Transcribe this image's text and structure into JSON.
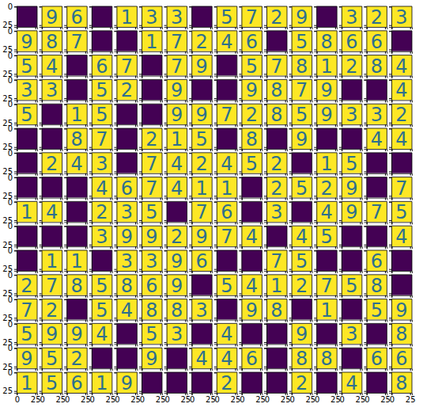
{
  "chart_data": {
    "type": "image_grid",
    "xlim": [
      -0.5,
      27.5
    ],
    "ylim": [
      27.5,
      -0.5
    ],
    "xticks": [
      0,
      25
    ],
    "yticks": [
      0,
      25
    ],
    "cells": [
      [
        null,
        9,
        6,
        null,
        1,
        3,
        3,
        null,
        5,
        7,
        2,
        9,
        null,
        3,
        2,
        3
      ],
      [
        9,
        8,
        7,
        null,
        null,
        1,
        7,
        2,
        4,
        6,
        null,
        5,
        8,
        6,
        6,
        null
      ],
      [
        5,
        4,
        null,
        6,
        7,
        null,
        7,
        9,
        null,
        5,
        7,
        8,
        1,
        2,
        8,
        4
      ],
      [
        3,
        3,
        null,
        5,
        2,
        null,
        9,
        null,
        null,
        9,
        8,
        7,
        9,
        null,
        null,
        4
      ],
      [
        5,
        null,
        1,
        5,
        null,
        null,
        9,
        9,
        7,
        2,
        8,
        5,
        9,
        3,
        3,
        2
      ],
      [
        null,
        null,
        8,
        7,
        null,
        2,
        1,
        5,
        null,
        8,
        null,
        9,
        null,
        null,
        4,
        4
      ],
      [
        null,
        2,
        4,
        3,
        null,
        7,
        4,
        2,
        4,
        5,
        2,
        null,
        1,
        5,
        null,
        null
      ],
      [
        null,
        null,
        null,
        4,
        6,
        7,
        4,
        1,
        1,
        null,
        2,
        5,
        2,
        9,
        null,
        7
      ],
      [
        1,
        4,
        null,
        2,
        3,
        5,
        null,
        7,
        6,
        null,
        3,
        null,
        4,
        9,
        7,
        5
      ],
      [
        null,
        null,
        null,
        3,
        9,
        9,
        2,
        9,
        7,
        4,
        null,
        4,
        5,
        null,
        null,
        4
      ],
      [
        null,
        1,
        1,
        null,
        3,
        3,
        9,
        6,
        null,
        null,
        7,
        5,
        null,
        null,
        6,
        null
      ],
      [
        2,
        7,
        8,
        5,
        8,
        6,
        9,
        null,
        5,
        4,
        1,
        2,
        7,
        5,
        8,
        null
      ],
      [
        7,
        2,
        null,
        5,
        4,
        8,
        8,
        3,
        null,
        9,
        8,
        null,
        1,
        null,
        5,
        9
      ],
      [
        5,
        9,
        9,
        4,
        null,
        5,
        3,
        null,
        4,
        null,
        null,
        9,
        null,
        3,
        null,
        8
      ],
      [
        9,
        5,
        2,
        null,
        null,
        9,
        null,
        4,
        4,
        6,
        null,
        8,
        8,
        null,
        6,
        6
      ],
      [
        1,
        5,
        6,
        1,
        9,
        null,
        null,
        null,
        2,
        null,
        null,
        2,
        null,
        4,
        null,
        8
      ]
    ]
  }
}
